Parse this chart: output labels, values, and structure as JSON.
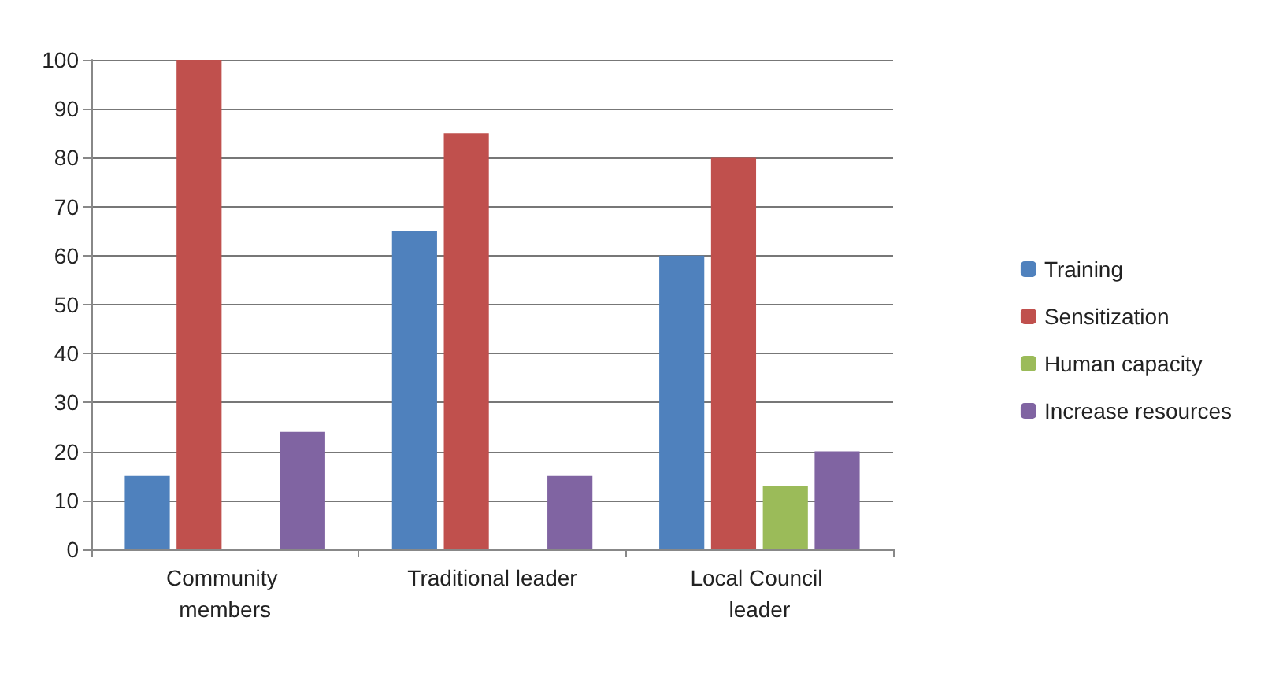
{
  "chart_data": {
    "type": "bar",
    "categories": [
      "Community members",
      "Traditional leader",
      "Local Council leader"
    ],
    "series": [
      {
        "name": "Training",
        "color": "#4f81bd",
        "values": [
          15,
          65,
          60
        ]
      },
      {
        "name": "Sensitization",
        "color": "#c0504d",
        "values": [
          100,
          85,
          80
        ]
      },
      {
        "name": "Human capacity",
        "color": "#9bbb59",
        "values": [
          0,
          0,
          13
        ]
      },
      {
        "name": "Increase resources",
        "color": "#8064a2",
        "values": [
          24,
          15,
          20
        ]
      }
    ],
    "ylim": [
      0,
      100
    ],
    "yticks": [
      0,
      10,
      20,
      30,
      40,
      50,
      60,
      70,
      80,
      90,
      100
    ],
    "grid": "y",
    "legend": "right"
  }
}
